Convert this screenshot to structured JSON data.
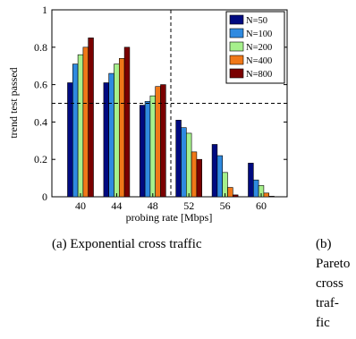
{
  "chart_data": {
    "type": "bar",
    "categories": [
      "40",
      "44",
      "48",
      "52",
      "56",
      "60"
    ],
    "series": [
      {
        "name": "N=50",
        "color": "#000a80",
        "values": [
          0.61,
          0.61,
          0.49,
          0.41,
          0.28,
          0.18
        ]
      },
      {
        "name": "N=100",
        "color": "#2f8ae0",
        "values": [
          0.71,
          0.66,
          0.51,
          0.37,
          0.22,
          0.09
        ]
      },
      {
        "name": "N=200",
        "color": "#a6f08c",
        "values": [
          0.76,
          0.71,
          0.54,
          0.34,
          0.13,
          0.06
        ]
      },
      {
        "name": "N=400",
        "color": "#f07818",
        "values": [
          0.8,
          0.74,
          0.59,
          0.24,
          0.05,
          0.02
        ]
      },
      {
        "name": "N=800",
        "color": "#7a0000",
        "values": [
          0.85,
          0.8,
          0.6,
          0.2,
          0.01,
          0.0
        ]
      }
    ],
    "title": "",
    "xlabel": "probing rate [Mbps]",
    "ylabel": "trend test passed",
    "ylim": [
      0,
      1
    ],
    "yticks": [
      "0",
      "0.2",
      "0.4",
      "0.6",
      "0.8",
      "1"
    ],
    "reference_lines": {
      "horizontal_y": 0.5,
      "vertical_between": [
        "48",
        "52"
      ]
    },
    "grid": false,
    "legend_position": "top-right"
  },
  "captions": {
    "a": "(a) Exponential cross traffic",
    "b_lines": [
      "(b)",
      "Pareto",
      "cross",
      "traf-",
      "fic"
    ]
  }
}
